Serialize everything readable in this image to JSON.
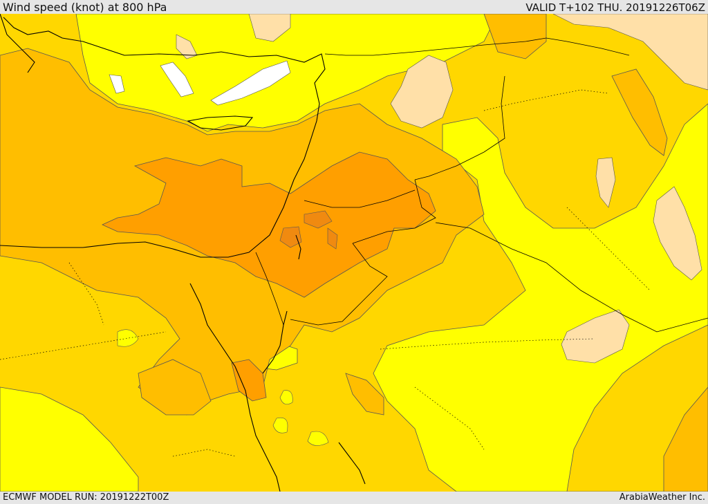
{
  "header": {
    "title": "Wind speed (knot) at 800 hPa",
    "valid": "VALID T+102 THU. 20191226T06Z"
  },
  "footer": {
    "model_run": "ECMWF MODEL RUN: 20191222T00Z",
    "credit": "ArabiaWeather Inc."
  },
  "map": {
    "field": "wind speed",
    "level": "800 hPa",
    "unit": "knot",
    "colors": {
      "calm": "#ffffff",
      "light": "#ffe0a8",
      "low": "#ffff00",
      "moderate": "#ffd700",
      "fresh": "#ffbe00",
      "strong": "#ff9f00",
      "very_strong": "#f08a10",
      "coast": "#000000",
      "contour": "#555555"
    }
  }
}
